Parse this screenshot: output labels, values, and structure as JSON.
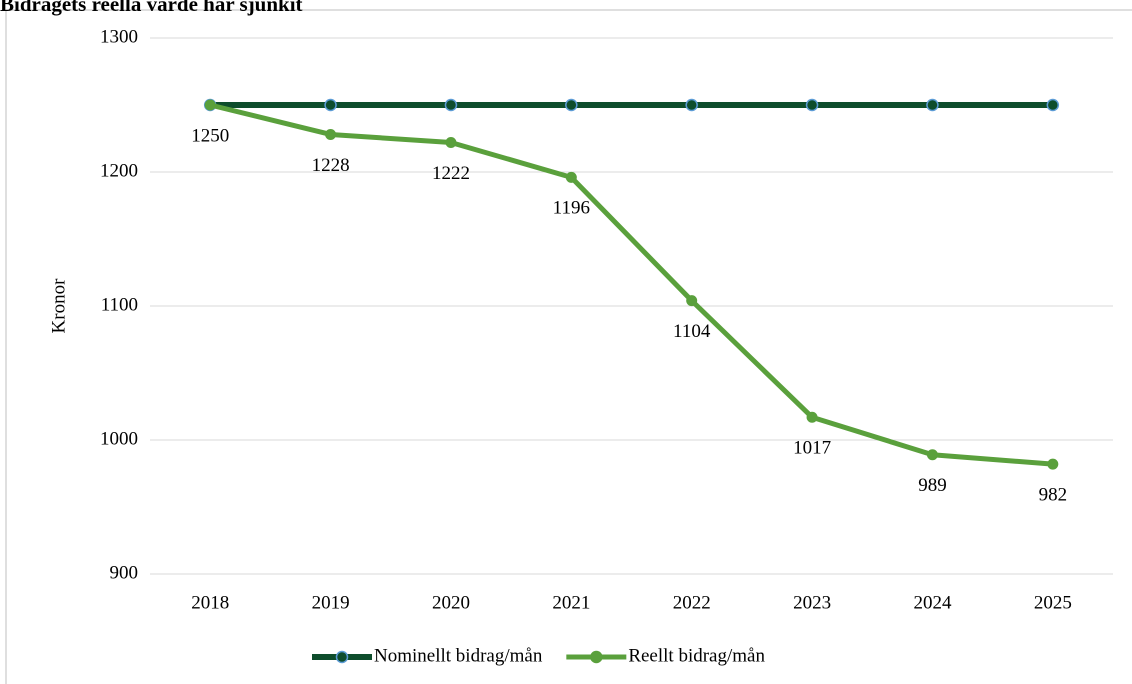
{
  "chart_data": {
    "type": "line",
    "title": "Bidragets reella värde har sjunkit",
    "ylabel": "Kronor",
    "categories": [
      "2018",
      "2019",
      "2020",
      "2021",
      "2022",
      "2023",
      "2024",
      "2025"
    ],
    "series": [
      {
        "name": "Nominellt bidrag/mån",
        "color": "#0e4d2c",
        "values": [
          1250,
          1250,
          1250,
          1250,
          1250,
          1250,
          1250,
          1250
        ]
      },
      {
        "name": "Reellt bidrag/mån",
        "color": "#5aa03c",
        "values": [
          1250,
          1228,
          1222,
          1196,
          1104,
          1017,
          989,
          982
        ],
        "data_labels": true
      }
    ],
    "ylim": [
      900,
      1300
    ],
    "yticks": [
      900,
      1000,
      1100,
      1200,
      1300
    ],
    "grid": true,
    "legend": "bottom"
  }
}
